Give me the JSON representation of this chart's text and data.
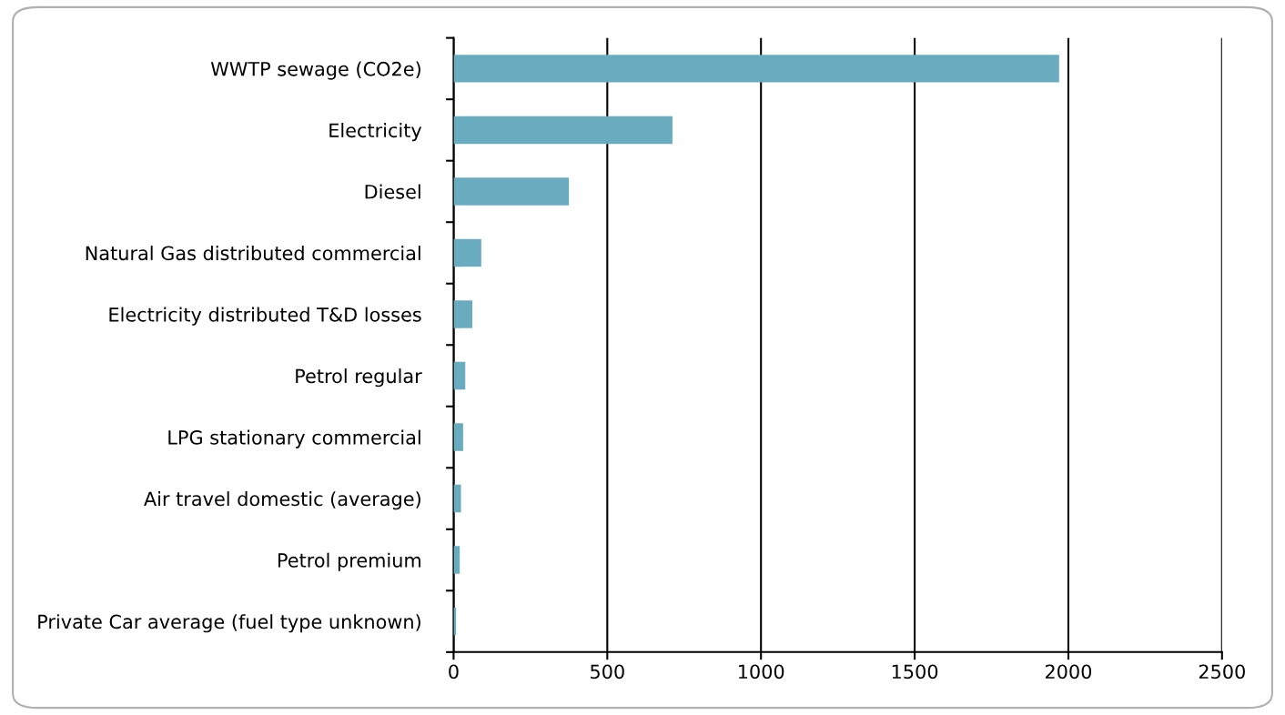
{
  "chart_data": {
    "type": "bar",
    "orientation": "horizontal",
    "categories": [
      "WWTP sewage (CO2e)",
      "Electricity",
      "Diesel",
      "Natural Gas distributed commercial",
      "Electricity distributed T&D losses",
      "Petrol regular",
      "LPG stationary commercial",
      "Air travel domestic (average)",
      "Petrol premium",
      "Private Car average (fuel type unknown)"
    ],
    "values": [
      1970,
      712,
      375,
      90,
      61,
      38,
      31,
      24,
      20,
      8
    ],
    "color": "#6aacbf",
    "xlim": [
      0,
      2500
    ],
    "xticks": [
      0,
      500,
      1000,
      1500,
      2000,
      2500
    ],
    "grid": "x",
    "legend": false
  }
}
